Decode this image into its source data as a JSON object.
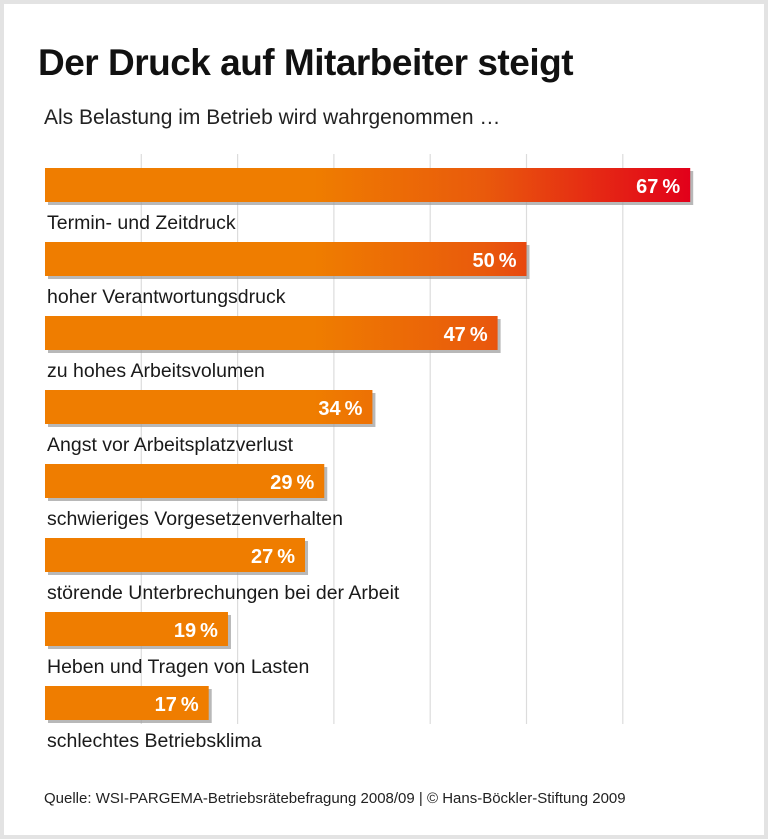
{
  "chart_data": {
    "type": "bar",
    "orientation": "horizontal",
    "title": "Der Druck auf Mitarbeiter steigt",
    "subtitle": "Als Belastung im Betrieb wird wahrgenommen …",
    "categories": [
      "Termin- und Zeitdruck",
      "hoher Verantwortungsdruck",
      "zu hohes Arbeitsvolumen",
      "Angst vor Arbeitsplatzverlust",
      "schwieriges Vorgesetzenverhalten",
      "störende Unterbrechungen bei der Arbeit",
      "Heben und Tragen von Lasten",
      "schlechtes Betriebsklima"
    ],
    "values": [
      67,
      50,
      47,
      34,
      29,
      27,
      19,
      17
    ],
    "unit": "%",
    "xlim": [
      0,
      70
    ],
    "gridlines": [
      10,
      20,
      30,
      40,
      50,
      60
    ],
    "grid": true,
    "colors": {
      "low": "#ef7d00",
      "high": "#e2001a",
      "shadow": "#9a9a9a",
      "grid": "#dcdcdc"
    },
    "source": "Quelle: WSI-PARGEMA-Betriebsrätebefragung 2008/09 | © Hans-Böckler-Stiftung 2009"
  }
}
